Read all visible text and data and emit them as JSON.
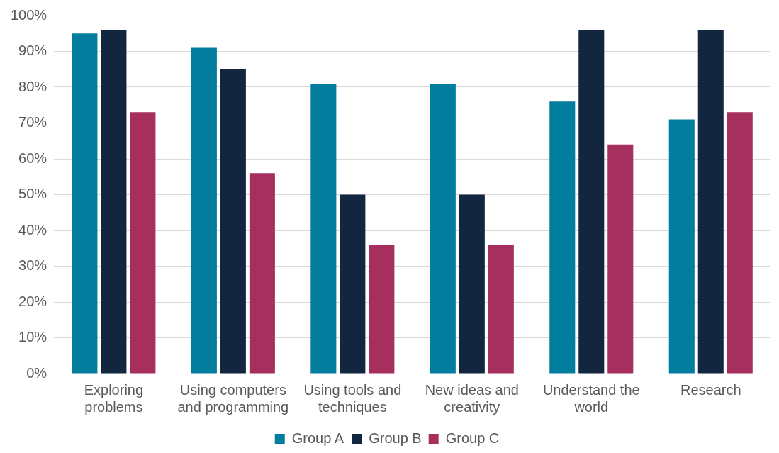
{
  "chart_data": {
    "type": "bar",
    "categories": [
      "Exploring problems",
      "Using computers and programming",
      "Using tools and techniques",
      "New ideas and creativity",
      "Understand the world",
      "Research"
    ],
    "series": [
      {
        "name": "Group A",
        "color": "#037d9e",
        "values": [
          95,
          91,
          81,
          81,
          76,
          71
        ]
      },
      {
        "name": "Group B",
        "color": "#12263f",
        "values": [
          96,
          85,
          50,
          50,
          96,
          96
        ]
      },
      {
        "name": "Group C",
        "color": "#a62f5e",
        "values": [
          73,
          56,
          36,
          36,
          64,
          73
        ]
      }
    ],
    "ylim": [
      0,
      100
    ],
    "yticks": [
      {
        "value": 0,
        "label": "0%"
      },
      {
        "value": 10,
        "label": "10%"
      },
      {
        "value": 20,
        "label": "20%"
      },
      {
        "value": 30,
        "label": "30%"
      },
      {
        "value": 40,
        "label": "40%"
      },
      {
        "value": 50,
        "label": "50%"
      },
      {
        "value": 60,
        "label": "60%"
      },
      {
        "value": 70,
        "label": "70%"
      },
      {
        "value": 80,
        "label": "80%"
      },
      {
        "value": 90,
        "label": "90%"
      },
      {
        "value": 100,
        "label": "100%"
      }
    ],
    "grid": "y",
    "legend": "bottom"
  }
}
